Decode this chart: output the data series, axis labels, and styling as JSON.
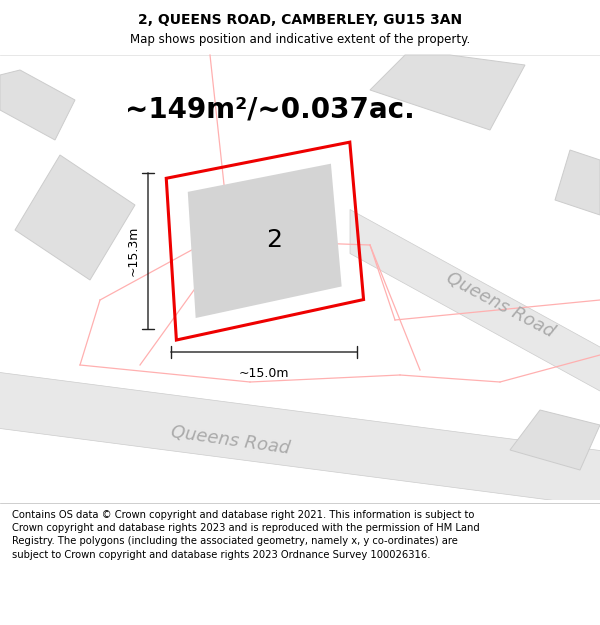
{
  "title": "2, QUEENS ROAD, CAMBERLEY, GU15 3AN",
  "subtitle": "Map shows position and indicative extent of the property.",
  "area_label": "~149m²/~0.037ac.",
  "plot_number": "2",
  "dim_width": "~15.0m",
  "dim_height": "~15.3m",
  "road_label": "Queens Road",
  "footer_text": "Contains OS data © Crown copyright and database right 2021. This information is subject to Crown copyright and database rights 2023 and is reproduced with the permission of HM Land Registry. The polygons (including the associated geometry, namely x, y co-ordinates) are subject to Crown copyright and database rights 2023 Ordnance Survey 100026316.",
  "title_fontsize": 10,
  "subtitle_fontsize": 8.5,
  "area_fontsize": 20,
  "plot_num_fontsize": 18,
  "road_fontsize": 13,
  "footer_fontsize": 7.2,
  "map_bg": "#ffffff",
  "bldg_fill": "#e0e0e0",
  "bldg_edge": "#cccccc",
  "inner_fill": "#d4d4d4",
  "red_color": "#ee0000",
  "pink_color": "#ffb0b0",
  "road_fill": "#e8e8e8",
  "road_edge": "#cccccc",
  "dim_line_color": "#222222",
  "road_text_color": "#aaaaaa",
  "footer_bg": "#ffffff"
}
